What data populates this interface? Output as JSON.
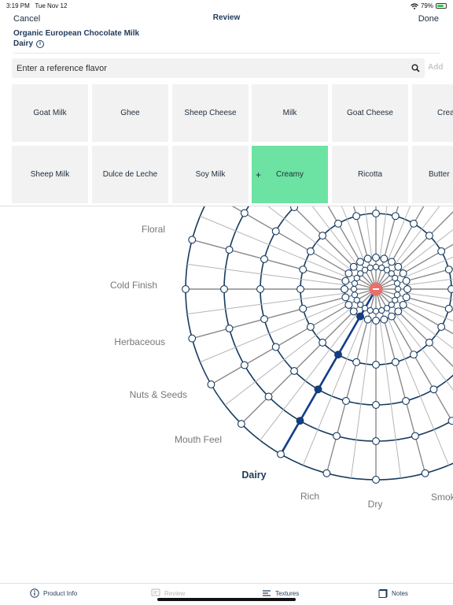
{
  "status": {
    "time": "3:19 PM",
    "date": "Tue Nov 12",
    "battery": "79%",
    "battery_level": 0.79
  },
  "nav": {
    "cancel": "Cancel",
    "title": "Review",
    "done": "Done"
  },
  "product": {
    "name": "Organic European Chocolate Milk",
    "category": "Dairy"
  },
  "search": {
    "placeholder": "Enter a reference flavor",
    "add": "Add"
  },
  "flavors": {
    "row1": [
      "Goat Milk",
      "Ghee",
      "Sheep Cheese",
      "Milk",
      "Goat Cheese",
      "Cream Cheese"
    ],
    "row2": [
      "Sheep Milk",
      "Dulce de Leche",
      "Soy Milk",
      "Creamy",
      "Ricotta",
      "Butter"
    ],
    "selected": "Creamy",
    "selected_marker": "+"
  },
  "wheel": {
    "labels": [
      "Floral",
      "Cold Finish",
      "Herbaceous",
      "Nuts & Seeds",
      "Mouth Feel",
      "Dairy",
      "Rich",
      "Dry",
      "Smoky"
    ],
    "active_label": "Dairy",
    "colors": {
      "ring": "#163a5f",
      "spoke": "#8a8a8a",
      "active": "#123d8a",
      "center": "#e8706a"
    }
  },
  "tabs": [
    {
      "label": "Product Info",
      "icon": "info-icon"
    },
    {
      "label": "Review",
      "icon": "review-icon"
    },
    {
      "label": "Textures",
      "icon": "textures-icon"
    },
    {
      "label": "Notes",
      "icon": "notes-icon"
    }
  ]
}
